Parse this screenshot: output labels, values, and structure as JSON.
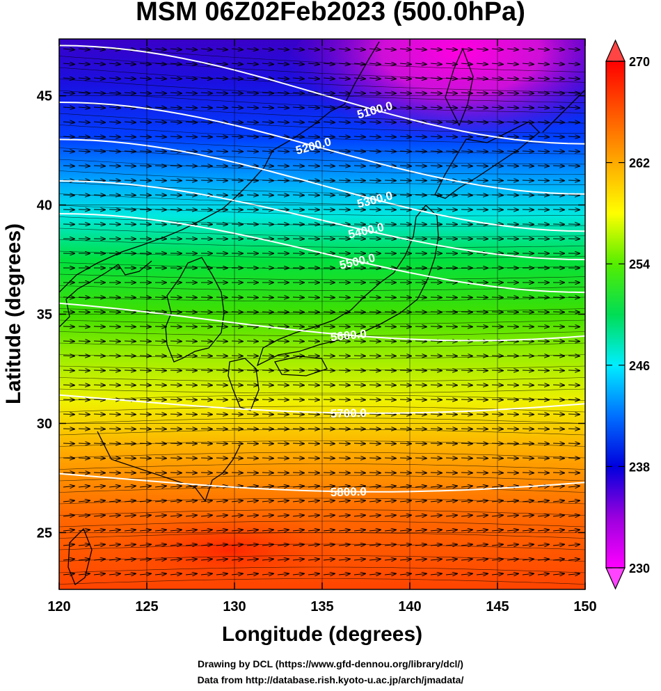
{
  "title": "MSM 06Z02Feb2023 (500.0hPa)",
  "credits": {
    "line1": "Drawing by DCL (https://www.gfd-dennou.org/library/dcl/)",
    "line2": "Data from http://database.rish.kyoto-u.ac.jp/arch/jmadata/"
  },
  "chart_data": {
    "type": "heatmap",
    "title": "MSM 06Z02Feb2023 (500.0hPa)",
    "xlabel": "Longitude (degrees)",
    "ylabel": "Latitude  (degrees)",
    "xlim": [
      120,
      150
    ],
    "ylim": [
      22.4,
      47.6
    ],
    "x_ticks": [
      120,
      125,
      130,
      135,
      140,
      145,
      150
    ],
    "y_ticks": [
      25,
      30,
      35,
      40,
      45
    ],
    "colorbar": {
      "min": 230,
      "max": 270,
      "tick_labels": [
        "230",
        "238",
        "246",
        "254",
        "262",
        "270"
      ],
      "tick_values": [
        230,
        238,
        246,
        254,
        262,
        270
      ],
      "colors": [
        "#ff00ff",
        "#7700cc",
        "#0000dd",
        "#00aaff",
        "#00ffee",
        "#00dd44",
        "#66ee00",
        "#ffff00",
        "#ffaa00",
        "#ff5500",
        "#ff0000"
      ]
    },
    "contours": [
      {
        "label": "5100.0",
        "lat_at_150": 42.8
      },
      {
        "label": "5200.0",
        "lat_at_150": 40.5
      },
      {
        "label": "5300.0",
        "lat_at_150": 38.8
      },
      {
        "label": "5400.0",
        "lat_at_150": 37.5
      },
      {
        "label": "5500.0",
        "lat_at_150": 36.0
      },
      {
        "label": "5600.0",
        "lat_at_150": 34.0
      },
      {
        "label": "5700.0",
        "lat_at_150": 30.9
      },
      {
        "label": "5800.0",
        "lat_at_150": 27.3
      }
    ]
  }
}
